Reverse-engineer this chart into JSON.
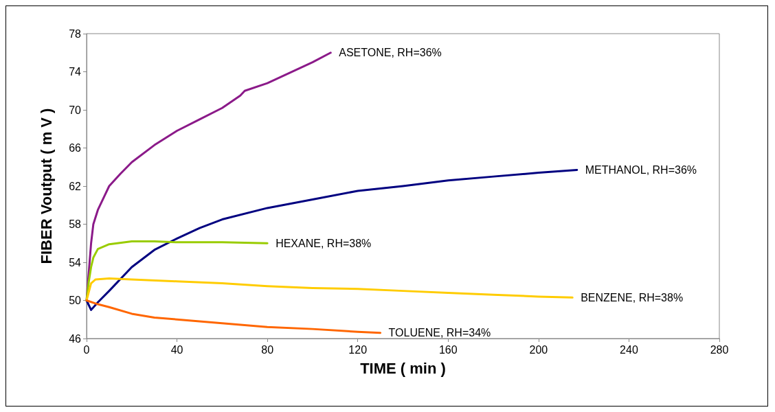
{
  "chart_data": {
    "type": "line",
    "xlabel": "TIME ( min )",
    "ylabel": "FIBER Voutput ( m V )",
    "xlim": [
      0,
      280
    ],
    "xticks": [
      0,
      40,
      80,
      120,
      160,
      200,
      240,
      280
    ],
    "ylim": [
      46,
      78
    ],
    "yticks": [
      46,
      50,
      54,
      58,
      62,
      66,
      70,
      74,
      78
    ],
    "grid": false,
    "legend": false,
    "series": [
      {
        "name": "ASETONE, RH=36%",
        "color": "#8b1a89",
        "x": [
          0,
          1,
          2,
          3,
          5,
          8,
          10,
          15,
          20,
          30,
          40,
          50,
          60,
          68,
          70,
          80,
          90,
          100,
          108
        ],
        "values": [
          50,
          53,
          56,
          58,
          59.5,
          61,
          62,
          63.3,
          64.5,
          66.3,
          67.8,
          69,
          70.2,
          71.5,
          72,
          72.8,
          73.9,
          75,
          76
        ]
      },
      {
        "name": "METHANOL, RH=36%",
        "color": "#000080",
        "x": [
          0,
          2,
          5,
          10,
          20,
          30,
          40,
          50,
          60,
          80,
          100,
          120,
          140,
          160,
          180,
          200,
          217
        ],
        "values": [
          50,
          49,
          49.8,
          51,
          53.5,
          55.3,
          56.5,
          57.6,
          58.5,
          59.7,
          60.6,
          61.5,
          62,
          62.6,
          63,
          63.4,
          63.7
        ]
      },
      {
        "name": "HEXANE, RH=38%",
        "color": "#99cc00",
        "x": [
          0,
          1,
          2,
          3,
          5,
          10,
          20,
          30,
          40,
          60,
          80
        ],
        "values": [
          50,
          52,
          53.5,
          54.5,
          55.4,
          55.9,
          56.2,
          56.2,
          56.1,
          56.1,
          56
        ]
      },
      {
        "name": "BENZENE, RH=38%",
        "color": "#ffcc00",
        "x": [
          0,
          2,
          4,
          10,
          20,
          40,
          60,
          80,
          100,
          120,
          140,
          160,
          180,
          200,
          215
        ],
        "values": [
          50,
          51.8,
          52.2,
          52.3,
          52.2,
          52,
          51.8,
          51.5,
          51.3,
          51.2,
          51,
          50.8,
          50.6,
          50.4,
          50.3
        ]
      },
      {
        "name": "TOLUENE, RH=34%",
        "color": "#ff6600",
        "x": [
          0,
          5,
          10,
          20,
          30,
          40,
          60,
          80,
          100,
          120,
          130
        ],
        "values": [
          50,
          49.6,
          49.3,
          48.6,
          48.2,
          48,
          47.6,
          47.2,
          47,
          46.7,
          46.6
        ]
      }
    ]
  }
}
